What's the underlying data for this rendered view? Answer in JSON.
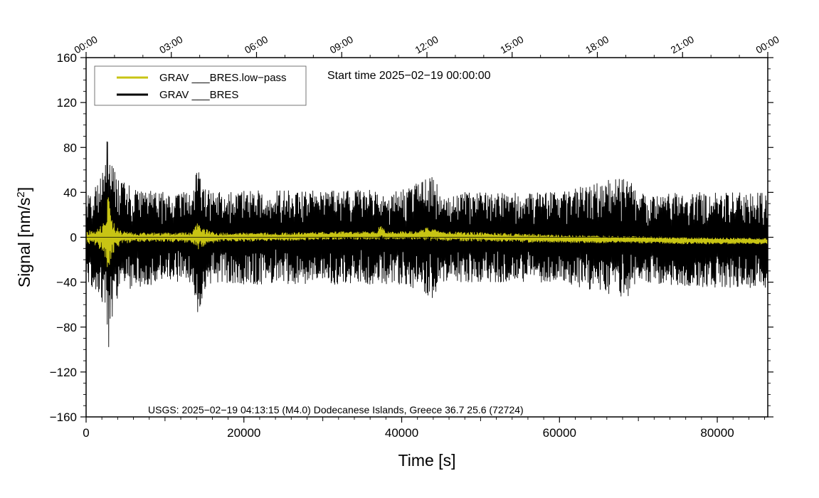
{
  "chart_data": {
    "type": "line",
    "title": "",
    "xlabel": "Time [s]",
    "ylabel": "Signal [nm/s²]",
    "xlim": [
      0,
      86400
    ],
    "ylim": [
      -160,
      160
    ],
    "x_ticks": [
      0,
      20000,
      40000,
      60000,
      80000
    ],
    "x_tick_labels": [
      "0",
      "20000",
      "40000",
      "60000",
      "80000"
    ],
    "y_ticks": [
      160,
      120,
      80,
      40,
      0,
      -40,
      -80,
      -120,
      -160
    ],
    "y_tick_labels": [
      "160",
      "120",
      "80",
      "40",
      "0",
      "−40",
      "−80",
      "−120",
      "−160"
    ],
    "top_axis": {
      "tick_values": [
        0,
        10800,
        21600,
        32400,
        43200,
        54000,
        64800,
        75600,
        86400
      ],
      "tick_labels": [
        "00:00",
        "03:00",
        "06:00",
        "09:00",
        "12:00",
        "15:00",
        "18:00",
        "21:00",
        "00:00"
      ]
    },
    "annotation": "Start time 2025−02−19 00:00:00",
    "event_note": "USGS: 2025−02−19 04:13:15 (M4.0) Dodecanese Islands, Greece 36.7 25.6 (72724)",
    "legend_position": "top-left",
    "grid": false,
    "series": [
      {
        "name": "GRAV ___BRES.low−pass",
        "color": "#c8c414",
        "envelope_x": [
          0,
          1000,
          2000,
          2500,
          2800,
          3000,
          3300,
          3800,
          4500,
          6000,
          10000,
          13500,
          14300,
          14700,
          15500,
          17000,
          25000,
          32000,
          37000,
          37200,
          38000,
          42000,
          43200,
          43800,
          45000,
          52000,
          60000,
          68000,
          76000,
          86400
        ],
        "envelope_upper": [
          6,
          6,
          12,
          22,
          40,
          30,
          18,
          10,
          6,
          4,
          4,
          5,
          16,
          10,
          6,
          4,
          4,
          5,
          5,
          12,
          5,
          5,
          9,
          8,
          5,
          4,
          2,
          1,
          0,
          -1
        ],
        "envelope_lower": [
          -6,
          -6,
          -12,
          -22,
          -30,
          -26,
          -18,
          -10,
          -6,
          -4,
          -4,
          -5,
          -12,
          -10,
          -6,
          -4,
          -3,
          -2,
          -2,
          -2,
          -2,
          -2,
          -3,
          -3,
          -3,
          -4,
          -5,
          -5,
          -6,
          -6
        ]
      },
      {
        "name": "GRAV ___BRES",
        "color": "#000000",
        "envelope_x": [
          0,
          1000,
          2000,
          2500,
          2800,
          3000,
          3500,
          4500,
          6000,
          10000,
          13500,
          14300,
          14800,
          16000,
          20000,
          30000,
          40000,
          44000,
          45000,
          50000,
          60000,
          68500,
          70000,
          80000,
          86400
        ],
        "envelope_upper": [
          45,
          45,
          55,
          80,
          100,
          85,
          60,
          50,
          45,
          40,
          40,
          70,
          45,
          40,
          42,
          42,
          42,
          55,
          40,
          40,
          40,
          55,
          40,
          40,
          40
        ],
        "envelope_lower": [
          -45,
          -45,
          -55,
          -80,
          -105,
          -90,
          -60,
          -50,
          -45,
          -40,
          -40,
          -75,
          -50,
          -40,
          -42,
          -42,
          -42,
          -55,
          -40,
          -40,
          -40,
          -55,
          -42,
          -45,
          -45
        ]
      }
    ]
  }
}
